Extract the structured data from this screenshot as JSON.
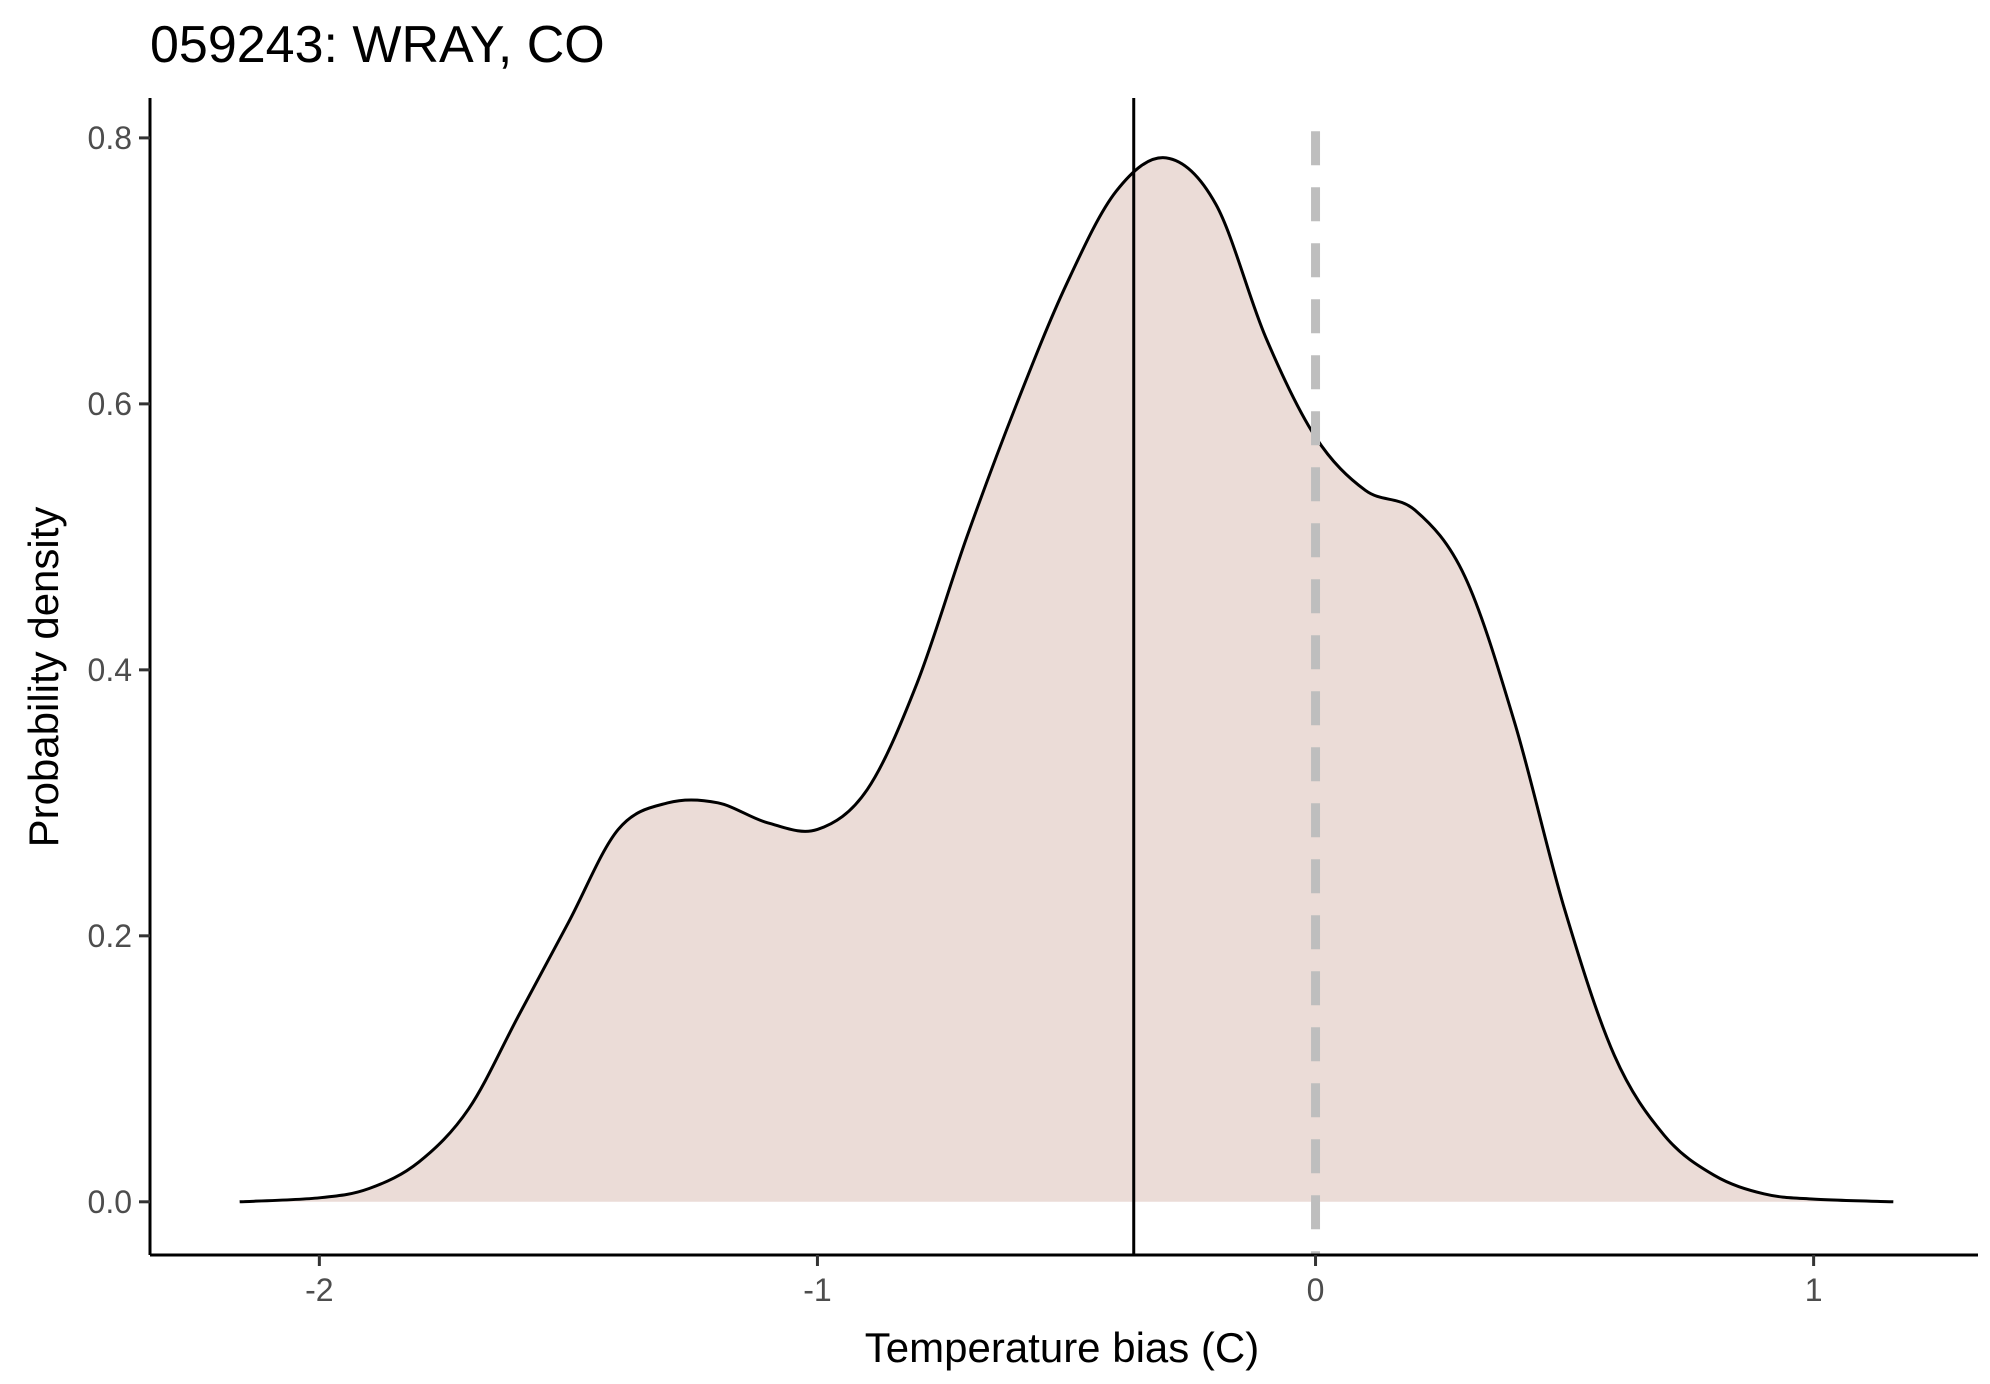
{
  "chart_data": {
    "type": "area",
    "title": "059243: WRAY, CO",
    "xlabel": "Temperature bias (C)",
    "ylabel": "Probability density",
    "xlim": [
      -2.34,
      1.33
    ],
    "ylim": [
      -0.04,
      0.83
    ],
    "x_ticks": [
      -2,
      -1,
      0,
      1
    ],
    "x_tick_labels": [
      "-2",
      "-1",
      "0",
      "1"
    ],
    "y_ticks": [
      0.0,
      0.2,
      0.4,
      0.6,
      0.8
    ],
    "y_tick_labels": [
      "0.0",
      "0.2",
      "0.4",
      "0.6",
      "0.8"
    ],
    "grid": false,
    "fill_color": "#ebdcd7",
    "line_color": "#000000",
    "mean_line": {
      "x": -0.365,
      "color": "#000000",
      "style": "solid"
    },
    "reference_line": {
      "x": 0,
      "color": "#bebebe",
      "style": "dashed"
    },
    "series": [
      {
        "x": [
          -2.16,
          -2.0,
          -1.9,
          -1.8,
          -1.7,
          -1.6,
          -1.5,
          -1.4,
          -1.3,
          -1.2,
          -1.1,
          -1.0,
          -0.9,
          -0.8,
          -0.7,
          -0.6,
          -0.5,
          -0.4,
          -0.3,
          -0.2,
          -0.1,
          0.0,
          0.1,
          0.2,
          0.3,
          0.4,
          0.5,
          0.6,
          0.7,
          0.8,
          0.9,
          1.0,
          1.16
        ],
        "values": [
          0.0,
          0.003,
          0.01,
          0.03,
          0.07,
          0.14,
          0.21,
          0.28,
          0.3,
          0.3,
          0.285,
          0.28,
          0.31,
          0.39,
          0.5,
          0.6,
          0.69,
          0.76,
          0.785,
          0.75,
          0.65,
          0.575,
          0.535,
          0.52,
          0.47,
          0.36,
          0.22,
          0.11,
          0.05,
          0.02,
          0.006,
          0.002,
          0.0
        ]
      }
    ]
  }
}
